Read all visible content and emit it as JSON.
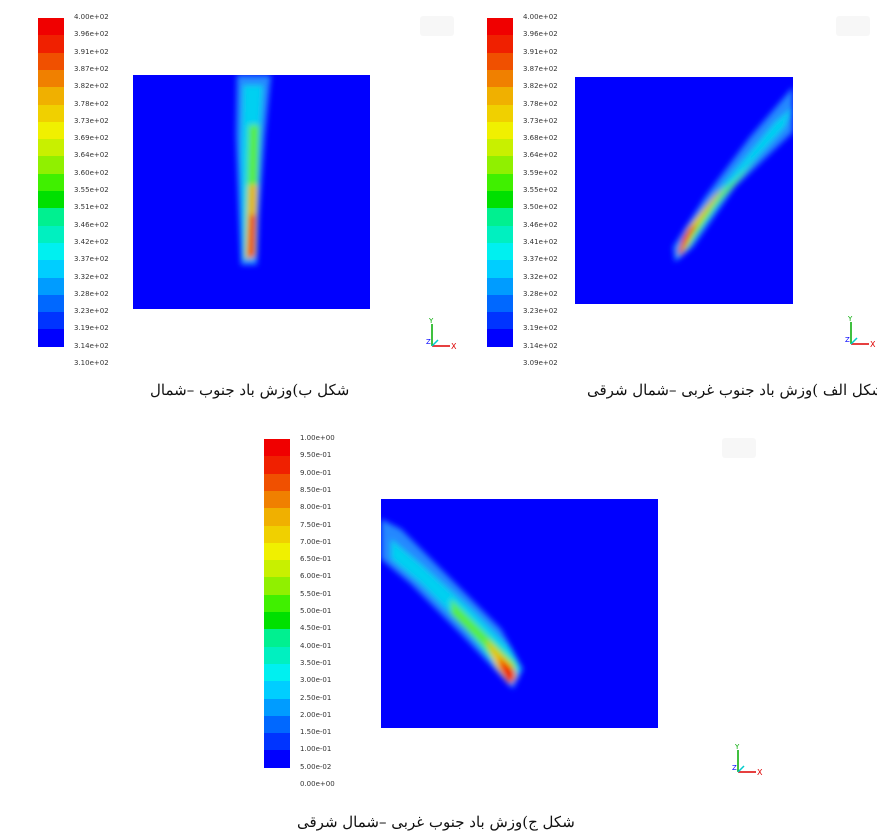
{
  "colors": [
    "#0000ff",
    "#0034ff",
    "#0068ff",
    "#009cff",
    "#00ceff",
    "#00f0f0",
    "#00f0c0",
    "#00f090",
    "#00e000",
    "#40f000",
    "#90f000",
    "#c8f000",
    "#f0f000",
    "#f0d000",
    "#f0b000",
    "#f08000",
    "#f05000",
    "#f02000",
    "#f00000"
  ],
  "panels": [
    {
      "id": "a",
      "caption": "شکل الف )وزش باد جنوب غربی –شمال شرقی",
      "colorbar_labels": [
        "4.00e+02",
        "3.96e+02",
        "3.91e+02",
        "3.87e+02",
        "3.82e+02",
        "3.78e+02",
        "3.73e+02",
        "3.68e+02",
        "3.64e+02",
        "3.59e+02",
        "3.55e+02",
        "3.50e+02",
        "3.46e+02",
        "3.41e+02",
        "3.37e+02",
        "3.32e+02",
        "3.28e+02",
        "3.23e+02",
        "3.19e+02",
        "3.14e+02",
        "3.09e+02"
      ]
    },
    {
      "id": "b",
      "caption": "شکل ب)وزش باد جنوب –شمال",
      "colorbar_labels": [
        "4.00e+02",
        "3.96e+02",
        "3.91e+02",
        "3.87e+02",
        "3.82e+02",
        "3.78e+02",
        "3.73e+02",
        "3.69e+02",
        "3.64e+02",
        "3.60e+02",
        "3.55e+02",
        "3.51e+02",
        "3.46e+02",
        "3.42e+02",
        "3.37e+02",
        "3.32e+02",
        "3.28e+02",
        "3.23e+02",
        "3.19e+02",
        "3.14e+02",
        "3.10e+02"
      ]
    },
    {
      "id": "c",
      "caption": "شکل ج)وزش باد جنوب غربی –شمال شرقی",
      "colorbar_labels": [
        "1.00e+00",
        "9.50e-01",
        "9.00e-01",
        "8.50e-01",
        "8.00e-01",
        "7.50e-01",
        "7.00e-01",
        "6.50e-01",
        "6.00e-01",
        "5.50e-01",
        "5.00e-01",
        "4.50e-01",
        "4.00e-01",
        "3.50e-01",
        "3.00e-01",
        "2.50e-01",
        "2.00e-01",
        "1.50e-01",
        "1.00e-01",
        "5.00e-02",
        "0.00e+00"
      ]
    }
  ],
  "axis_labels": {
    "y": "Y",
    "z": "Z",
    "x": "X"
  }
}
